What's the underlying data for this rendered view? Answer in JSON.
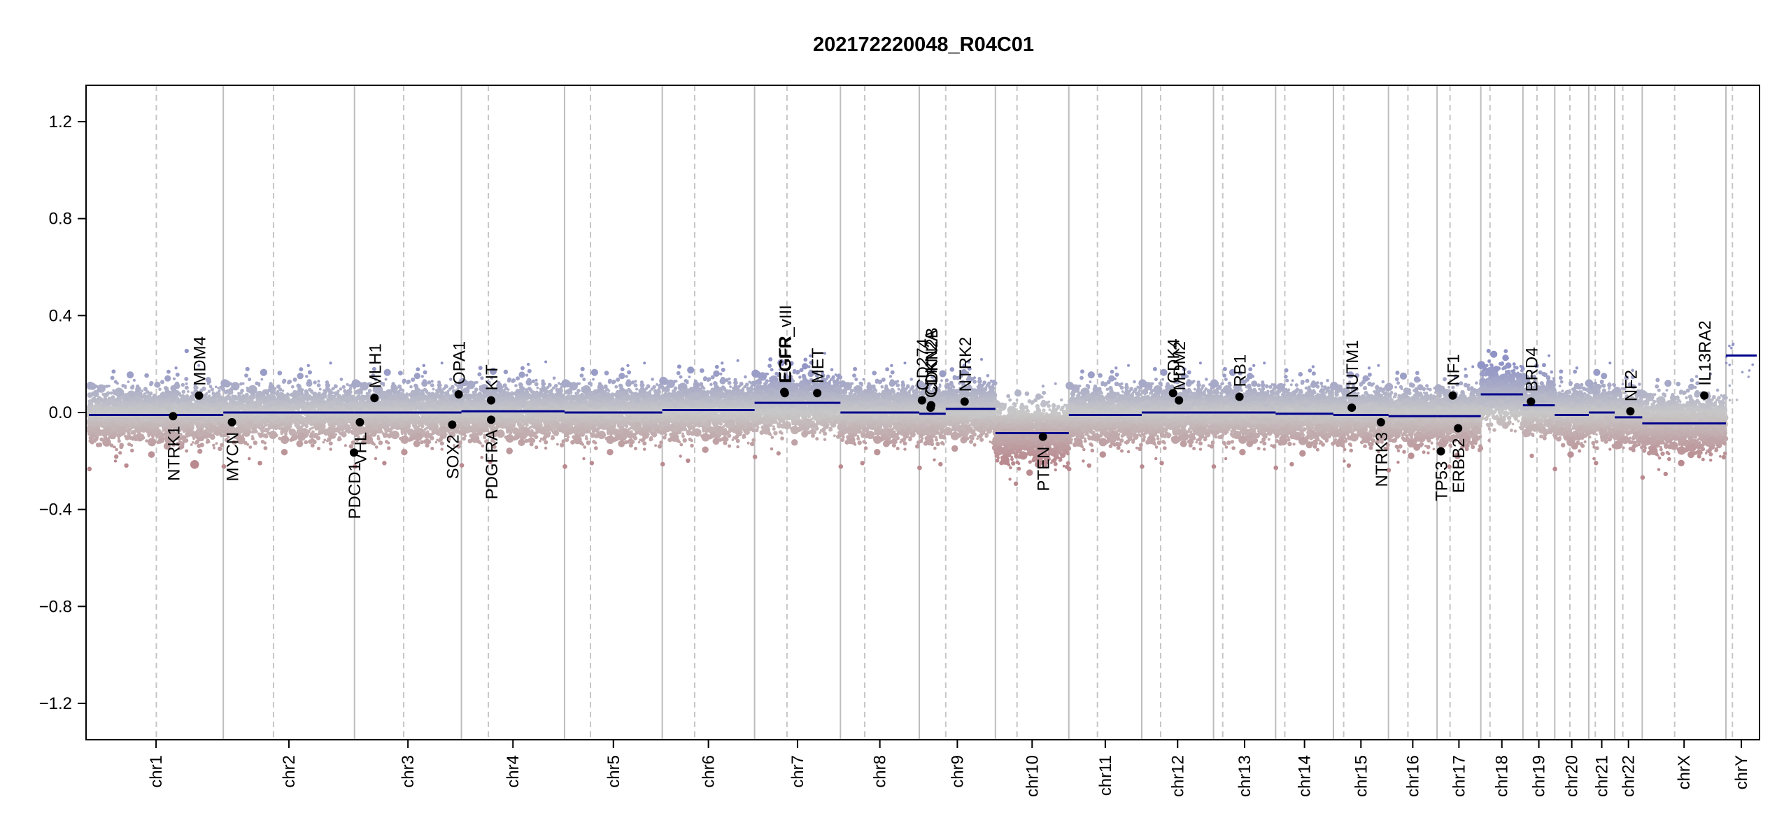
{
  "chart_data": {
    "type": "scatter",
    "title": "202172220048_R04C01",
    "xlabel": "",
    "ylabel": "",
    "ylim": [
      -1.35,
      1.35
    ],
    "y_ticks": [
      -1.2,
      -0.8,
      -0.4,
      0.0,
      0.4,
      0.8,
      1.2
    ],
    "y_tick_labels": [
      "−1.2",
      "−0.8",
      "−0.4",
      "0.0",
      "0.4",
      "0.8",
      "1.2"
    ],
    "grid": false,
    "colors": {
      "gain": "#8f93c6",
      "loss": "#b98a8f",
      "neutral": "#c8c8c8",
      "segment": "#00008b",
      "point": "#000000",
      "divider": "#bdbdbd",
      "centromere": "#c6c6c6"
    },
    "chromosomes": [
      {
        "name": "chr1",
        "size": 249,
        "centromere": 125
      },
      {
        "name": "chr2",
        "size": 243,
        "centromere": 93
      },
      {
        "name": "chr3",
        "size": 198,
        "centromere": 91
      },
      {
        "name": "chr4",
        "size": 191,
        "centromere": 50
      },
      {
        "name": "chr5",
        "size": 181,
        "centromere": 48
      },
      {
        "name": "chr6",
        "size": 171,
        "centromere": 60
      },
      {
        "name": "chr7",
        "size": 159,
        "centromere": 60
      },
      {
        "name": "chr8",
        "size": 146,
        "centromere": 45
      },
      {
        "name": "chr9",
        "size": 141,
        "centromere": 49
      },
      {
        "name": "chr10",
        "size": 136,
        "centromere": 40
      },
      {
        "name": "chr11",
        "size": 135,
        "centromere": 53
      },
      {
        "name": "chr12",
        "size": 133,
        "centromere": 35
      },
      {
        "name": "chr13",
        "size": 115,
        "centromere": 17
      },
      {
        "name": "chr14",
        "size": 107,
        "centromere": 17
      },
      {
        "name": "chr15",
        "size": 102,
        "centromere": 19
      },
      {
        "name": "chr16",
        "size": 90,
        "centromere": 36
      },
      {
        "name": "chr17",
        "size": 81,
        "centromere": 24
      },
      {
        "name": "chr18",
        "size": 78,
        "centromere": 17
      },
      {
        "name": "chr19",
        "size": 59,
        "centromere": 26
      },
      {
        "name": "chr20",
        "size": 63,
        "centromere": 28
      },
      {
        "name": "chr21",
        "size": 48,
        "centromere": 12
      },
      {
        "name": "chr22",
        "size": 51,
        "centromere": 15
      },
      {
        "name": "chrX",
        "size": 155,
        "centromere": 60
      },
      {
        "name": "chrY",
        "size": 57,
        "centromere": 12
      }
    ],
    "segments": [
      {
        "chr": "chr1",
        "start": 0,
        "end": 249,
        "value": -0.01
      },
      {
        "chr": "chr2",
        "start": 0,
        "end": 243,
        "value": 0.0
      },
      {
        "chr": "chr3",
        "start": 0,
        "end": 198,
        "value": 0.0
      },
      {
        "chr": "chr4",
        "start": 0,
        "end": 191,
        "value": 0.005
      },
      {
        "chr": "chr5",
        "start": 0,
        "end": 181,
        "value": 0.0
      },
      {
        "chr": "chr6",
        "start": 0,
        "end": 171,
        "value": 0.01
      },
      {
        "chr": "chr7",
        "start": 0,
        "end": 159,
        "value": 0.04
      },
      {
        "chr": "chr8",
        "start": 0,
        "end": 146,
        "value": 0.0
      },
      {
        "chr": "chr9",
        "start": 0,
        "end": 49,
        "value": -0.005
      },
      {
        "chr": "chr9",
        "start": 49,
        "end": 141,
        "value": 0.015
      },
      {
        "chr": "chr10",
        "start": 0,
        "end": 136,
        "value": -0.085
      },
      {
        "chr": "chr11",
        "start": 0,
        "end": 135,
        "value": -0.01
      },
      {
        "chr": "chr12",
        "start": 0,
        "end": 133,
        "value": 0.0
      },
      {
        "chr": "chr13",
        "start": 0,
        "end": 115,
        "value": 0.0
      },
      {
        "chr": "chr14",
        "start": 0,
        "end": 107,
        "value": -0.005
      },
      {
        "chr": "chr15",
        "start": 0,
        "end": 102,
        "value": -0.01
      },
      {
        "chr": "chr16",
        "start": 0,
        "end": 90,
        "value": -0.015
      },
      {
        "chr": "chr17",
        "start": 0,
        "end": 81,
        "value": -0.015
      },
      {
        "chr": "chr18",
        "start": 0,
        "end": 78,
        "value": 0.075
      },
      {
        "chr": "chr19",
        "start": 0,
        "end": 59,
        "value": 0.03
      },
      {
        "chr": "chr20",
        "start": 0,
        "end": 63,
        "value": -0.01
      },
      {
        "chr": "chr21",
        "start": 0,
        "end": 48,
        "value": 0.0
      },
      {
        "chr": "chr22",
        "start": 0,
        "end": 51,
        "value": -0.02
      },
      {
        "chr": "chrX",
        "start": 0,
        "end": 155,
        "value": -0.045
      },
      {
        "chr": "chrY",
        "start": 0,
        "end": 57,
        "value": 0.235
      }
    ],
    "genes": [
      {
        "name": "NTRK1",
        "chr": "chr1",
        "pos": 156,
        "value": -0.015,
        "label": "below"
      },
      {
        "name": "MDM4",
        "chr": "chr1",
        "pos": 204,
        "value": 0.07,
        "label": "above"
      },
      {
        "name": "MYCN",
        "chr": "chr2",
        "pos": 16,
        "value": -0.04,
        "label": "below"
      },
      {
        "name": "PDCD1",
        "chr": "chr2",
        "pos": 242,
        "value": -0.165,
        "label": "below"
      },
      {
        "name": "VHL",
        "chr": "chr3",
        "pos": 10,
        "value": -0.04,
        "label": "below"
      },
      {
        "name": "MLH1",
        "chr": "chr3",
        "pos": 37,
        "value": 0.06,
        "label": "above"
      },
      {
        "name": "SOX2",
        "chr": "chr3",
        "pos": 181,
        "value": -0.05,
        "label": "below"
      },
      {
        "name": "OPA1",
        "chr": "chr3",
        "pos": 193,
        "value": 0.075,
        "label": "above"
      },
      {
        "name": "PDGFRA",
        "chr": "chr4",
        "pos": 55,
        "value": -0.03,
        "label": "below"
      },
      {
        "name": "KIT",
        "chr": "chr4",
        "pos": 55,
        "value": 0.05,
        "label": "above"
      },
      {
        "name": "EGFR",
        "chr": "chr7",
        "pos": 55,
        "value": 0.085,
        "label": "above"
      },
      {
        "name": "EGFR_vIII",
        "chr": "chr7",
        "pos": 56,
        "value": 0.08,
        "label": "above"
      },
      {
        "name": "MET",
        "chr": "chr7",
        "pos": 116,
        "value": 0.08,
        "label": "above"
      },
      {
        "name": "CD274",
        "chr": "chr9",
        "pos": 5,
        "value": 0.05,
        "label": "above"
      },
      {
        "name": "CDKN2A",
        "chr": "chr9",
        "pos": 21,
        "value": 0.02,
        "label": "above"
      },
      {
        "name": "CDKN2B",
        "chr": "chr9",
        "pos": 22,
        "value": 0.03,
        "label": "above"
      },
      {
        "name": "NTRK2",
        "chr": "chr9",
        "pos": 84,
        "value": 0.045,
        "label": "above"
      },
      {
        "name": "PTEN",
        "chr": "chr10",
        "pos": 88,
        "value": -0.1,
        "label": "below"
      },
      {
        "name": "CDK4",
        "chr": "chr12",
        "pos": 58,
        "value": 0.08,
        "label": "above"
      },
      {
        "name": "MDM2",
        "chr": "chr12",
        "pos": 69,
        "value": 0.05,
        "label": "above"
      },
      {
        "name": "RB1",
        "chr": "chr13",
        "pos": 48,
        "value": 0.065,
        "label": "above"
      },
      {
        "name": "NUTM1",
        "chr": "chr15",
        "pos": 34,
        "value": 0.02,
        "label": "above"
      },
      {
        "name": "NTRK3",
        "chr": "chr15",
        "pos": 88,
        "value": -0.04,
        "label": "below"
      },
      {
        "name": "TP53",
        "chr": "chr17",
        "pos": 7,
        "value": -0.16,
        "label": "below"
      },
      {
        "name": "NF1",
        "chr": "chr17",
        "pos": 29,
        "value": 0.07,
        "label": "above"
      },
      {
        "name": "ERBB2",
        "chr": "chr17",
        "pos": 39,
        "value": -0.065,
        "label": "below"
      },
      {
        "name": "BRD4",
        "chr": "chr19",
        "pos": 15,
        "value": 0.045,
        "label": "above"
      },
      {
        "name": "NF2",
        "chr": "chr22",
        "pos": 29,
        "value": 0.005,
        "label": "above"
      },
      {
        "name": "IL13RA2",
        "chr": "chrX",
        "pos": 115,
        "value": 0.07,
        "label": "above"
      }
    ]
  }
}
